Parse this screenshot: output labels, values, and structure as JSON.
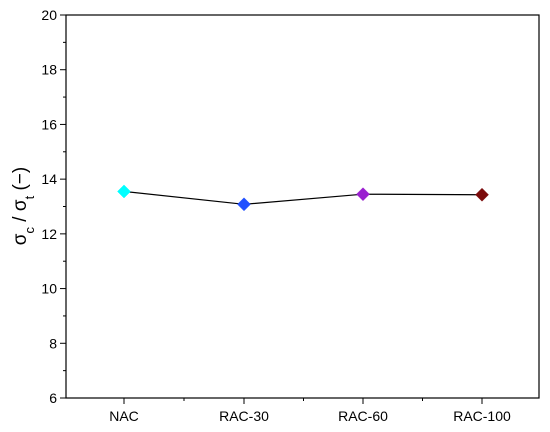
{
  "chart_data": {
    "type": "line",
    "title": "",
    "xlabel": "",
    "ylabel_main_1": "σ",
    "ylabel_sub_1": "c",
    "ylabel_sep": " / σ",
    "ylabel_sub_2": "t",
    "ylabel_end": " (−)",
    "categories": [
      "NAC",
      "RAC-30",
      "RAC-60",
      "RAC-100"
    ],
    "series": [
      {
        "values": [
          13.55,
          13.08,
          13.45,
          13.43
        ],
        "marker_colors": [
          "#00ffff",
          "#1f4fff",
          "#9a1fd0",
          "#7a0a0a"
        ],
        "line_color": "#000000"
      }
    ],
    "ylim": [
      6,
      20
    ],
    "yticks": [
      6,
      8,
      10,
      12,
      14,
      16,
      18,
      20
    ],
    "grid": false,
    "legend": "none"
  }
}
